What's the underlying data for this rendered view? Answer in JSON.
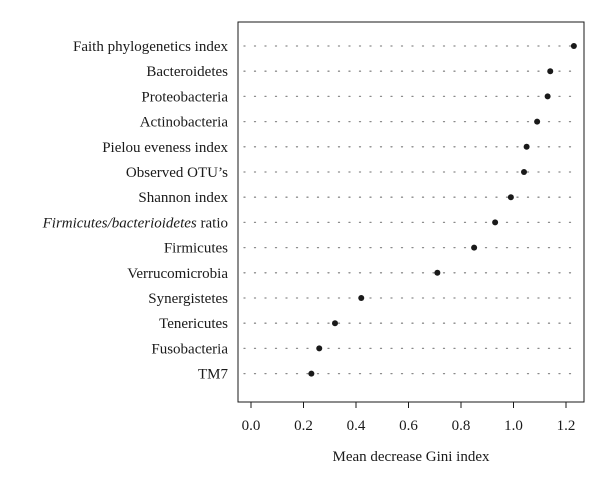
{
  "chart_data": {
    "type": "scatter",
    "subtype": "dot-plot",
    "title": "",
    "xlabel": "Mean decrease Gini index",
    "ylabel": "",
    "xlim": [
      -0.05,
      1.27
    ],
    "xticks": [
      "0.0",
      "0.2",
      "0.4",
      "0.6",
      "0.8",
      "1.0",
      "1.2"
    ],
    "grid": "dotted horizontal guide per row",
    "categories": [
      {
        "name": "Faith phylogenetics index",
        "value": 1.23
      },
      {
        "name": "Bacteroidetes",
        "value": 1.14
      },
      {
        "name": "Proteobacteria",
        "value": 1.13
      },
      {
        "name": "Actinobacteria",
        "value": 1.09
      },
      {
        "name": "Pielou eveness index",
        "value": 1.05
      },
      {
        "name": "Observed OTU’s",
        "value": 1.04
      },
      {
        "name": "Shannon index",
        "value": 0.99
      },
      {
        "name": "ratio_label",
        "italic_prefix": "Firmicutes/bacterioidetes",
        "suffix": " ratio",
        "value": 0.93
      },
      {
        "name": "Firmicutes",
        "value": 0.85
      },
      {
        "name": "Verrucomicrobia",
        "value": 0.71
      },
      {
        "name": "Synergistetes",
        "value": 0.42
      },
      {
        "name": "Tenericutes",
        "value": 0.32
      },
      {
        "name": "Fusobacteria",
        "value": 0.26
      },
      {
        "name": "TM7",
        "value": 0.23
      }
    ],
    "point_color": "#1a1a1a",
    "guide_color": "#8a8a8a"
  }
}
